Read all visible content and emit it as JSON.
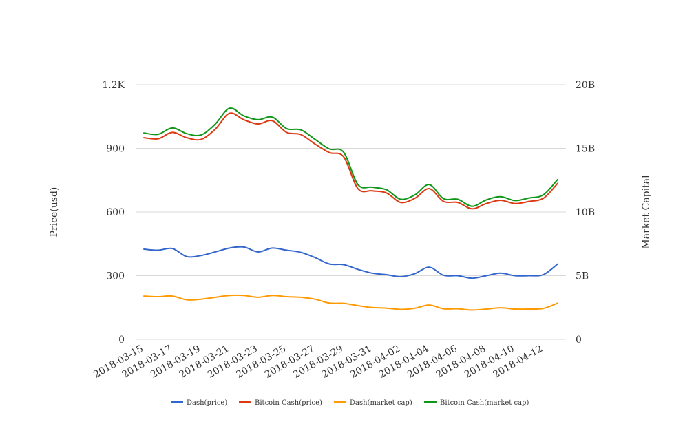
{
  "chart_data": {
    "type": "line",
    "title": "",
    "ylabel_left": "Price(usd)",
    "ylabel_right": "Market Capital",
    "ylim_left": [
      0,
      1200
    ],
    "ylim_right": [
      0,
      20000000000
    ],
    "yticks_left": [
      {
        "value": 0,
        "label": "0"
      },
      {
        "value": 300,
        "label": "300"
      },
      {
        "value": 600,
        "label": "600"
      },
      {
        "value": 900,
        "label": "900"
      },
      {
        "value": 1200,
        "label": "1.2K"
      }
    ],
    "yticks_right": [
      {
        "value": 0,
        "label": "0"
      },
      {
        "value": 5000000000,
        "label": "5B"
      },
      {
        "value": 10000000000,
        "label": "10B"
      },
      {
        "value": 15000000000,
        "label": "15B"
      },
      {
        "value": 20000000000,
        "label": "20B"
      }
    ],
    "x": [
      "2018-03-15",
      "2018-03-16",
      "2018-03-17",
      "2018-03-18",
      "2018-03-19",
      "2018-03-20",
      "2018-03-21",
      "2018-03-22",
      "2018-03-23",
      "2018-03-24",
      "2018-03-25",
      "2018-03-26",
      "2018-03-27",
      "2018-03-28",
      "2018-03-29",
      "2018-03-30",
      "2018-03-31",
      "2018-04-01",
      "2018-04-02",
      "2018-04-03",
      "2018-04-04",
      "2018-04-05",
      "2018-04-06",
      "2018-04-07",
      "2018-04-08",
      "2018-04-09",
      "2018-04-10",
      "2018-04-11",
      "2018-04-12",
      "2018-04-13"
    ],
    "xtick_labels": [
      "2018-03-15",
      "2018-03-17",
      "2018-03-19",
      "2018-03-21",
      "2018-03-23",
      "2018-03-25",
      "2018-03-27",
      "2018-03-29",
      "2018-03-31",
      "2018-04-02",
      "2018-04-04",
      "2018-04-06",
      "2018-04-08",
      "2018-04-10",
      "2018-04-12"
    ],
    "grid": true,
    "legend_position": "bottom",
    "series": [
      {
        "name": "Dash(price)",
        "axis": "left",
        "color": "#3366cc",
        "values": [
          425,
          420,
          428,
          390,
          395,
          412,
          430,
          435,
          412,
          430,
          420,
          410,
          385,
          355,
          352,
          330,
          312,
          305,
          295,
          310,
          340,
          302,
          300,
          288,
          300,
          312,
          300,
          300,
          305,
          355
        ]
      },
      {
        "name": "Bitcoin Cash(price)",
        "axis": "left",
        "color": "#dc3912",
        "values": [
          950,
          945,
          975,
          950,
          942,
          990,
          1065,
          1035,
          1015,
          1030,
          975,
          965,
          920,
          880,
          860,
          710,
          700,
          690,
          645,
          665,
          710,
          650,
          645,
          615,
          640,
          655,
          640,
          650,
          665,
          735
        ]
      },
      {
        "name": "Dash(market cap)",
        "axis": "right",
        "color": "#ff9900",
        "values": [
          3400000000,
          3350000000,
          3400000000,
          3100000000,
          3150000000,
          3300000000,
          3450000000,
          3450000000,
          3300000000,
          3450000000,
          3350000000,
          3300000000,
          3150000000,
          2850000000,
          2830000000,
          2650000000,
          2500000000,
          2450000000,
          2350000000,
          2450000000,
          2700000000,
          2400000000,
          2400000000,
          2300000000,
          2380000000,
          2480000000,
          2380000000,
          2380000000,
          2430000000,
          2850000000
        ]
      },
      {
        "name": "Bitcoin Cash(market cap)",
        "axis": "right",
        "color": "#109618",
        "values": [
          16200000000,
          16100000000,
          16600000000,
          16150000000,
          16050000000,
          16900000000,
          18150000000,
          17550000000,
          17250000000,
          17450000000,
          16550000000,
          16450000000,
          15700000000,
          14950000000,
          14700000000,
          12150000000,
          11950000000,
          11750000000,
          11000000000,
          11350000000,
          12150000000,
          11050000000,
          11000000000,
          10450000000,
          10950000000,
          11200000000,
          10900000000,
          11100000000,
          11350000000,
          12550000000
        ]
      }
    ]
  }
}
